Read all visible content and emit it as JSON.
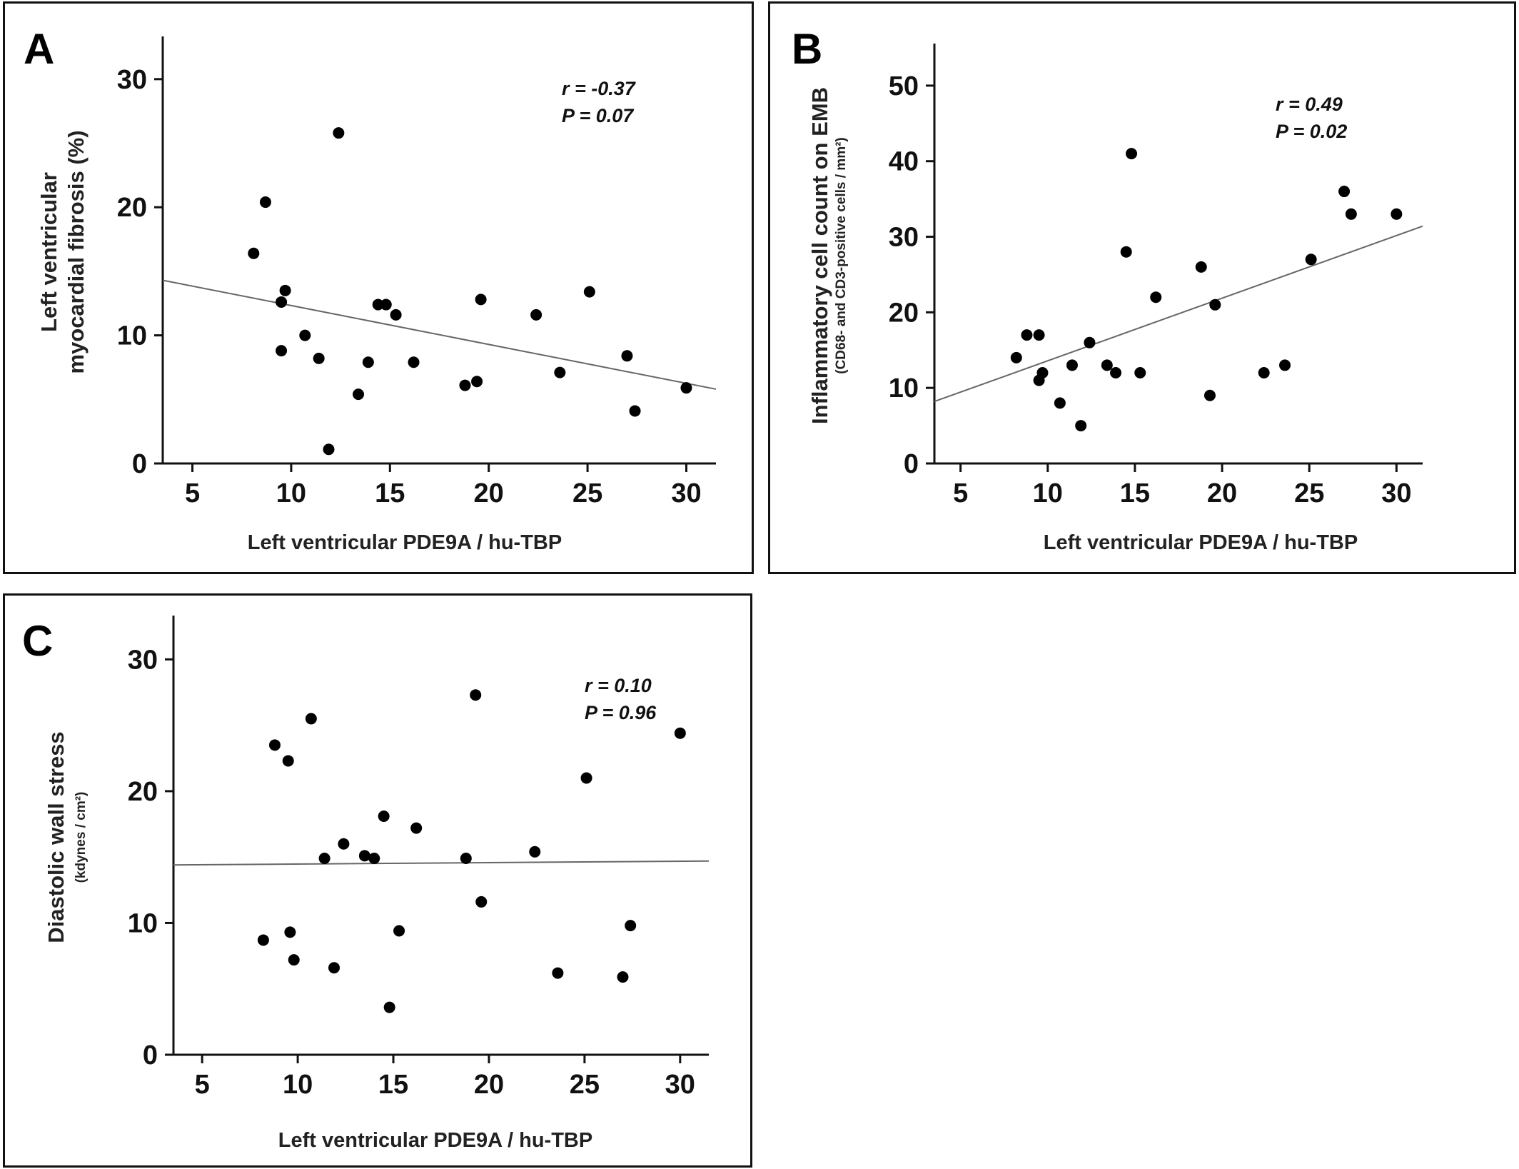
{
  "chart_data": [
    {
      "type": "scatter",
      "panel": "A",
      "xlabel": "Left ventricular PDE9A / hu-TBP",
      "ylabel_lines": [
        "Left ventricular",
        "myocardial fibrosis (%)"
      ],
      "ylabel_sub": "",
      "xlim": [
        3.5,
        31.5
      ],
      "ylim": [
        0,
        33
      ],
      "xticks": [
        5,
        10,
        15,
        20,
        25,
        30
      ],
      "yticks": [
        0,
        10,
        20,
        30
      ],
      "annotation": [
        "r = -0.37",
        "P = 0.07"
      ],
      "fit_line": {
        "from": [
          3.5,
          14.3
        ],
        "to": [
          31.5,
          5.8
        ]
      },
      "color": "#000000",
      "points": [
        [
          8.1,
          16.4
        ],
        [
          8.7,
          20.4
        ],
        [
          9.5,
          12.6
        ],
        [
          9.5,
          8.8
        ],
        [
          9.7,
          13.5
        ],
        [
          10.7,
          10.0
        ],
        [
          11.4,
          8.2
        ],
        [
          11.9,
          1.1
        ],
        [
          12.4,
          25.8
        ],
        [
          13.4,
          5.4
        ],
        [
          13.9,
          7.9
        ],
        [
          14.4,
          12.4
        ],
        [
          14.8,
          12.4
        ],
        [
          15.3,
          11.6
        ],
        [
          16.2,
          7.9
        ],
        [
          18.8,
          6.1
        ],
        [
          19.4,
          6.4
        ],
        [
          19.6,
          12.8
        ],
        [
          22.4,
          11.6
        ],
        [
          23.6,
          7.1
        ],
        [
          25.1,
          13.4
        ],
        [
          27.0,
          8.4
        ],
        [
          27.4,
          4.1
        ],
        [
          30.0,
          5.9
        ]
      ]
    },
    {
      "type": "scatter",
      "panel": "B",
      "xlabel": "Left ventricular PDE9A / hu-TBP",
      "ylabel_lines": [
        "Inflammatory cell count on EMB"
      ],
      "ylabel_sub": "(CD68- and CD3-positive cells / mm²)",
      "xlim": [
        3.5,
        31.5
      ],
      "ylim": [
        0,
        55
      ],
      "xticks": [
        5,
        10,
        15,
        20,
        25,
        30
      ],
      "yticks": [
        0,
        10,
        20,
        30,
        40,
        50
      ],
      "annotation": [
        "r = 0.49",
        "P = 0.02"
      ],
      "fit_line": {
        "from": [
          3.5,
          8.2
        ],
        "to": [
          31.5,
          31.4
        ]
      },
      "color": "#000000",
      "points": [
        [
          8.2,
          14
        ],
        [
          8.8,
          17
        ],
        [
          9.5,
          17
        ],
        [
          9.5,
          11
        ],
        [
          9.7,
          12
        ],
        [
          10.7,
          8
        ],
        [
          11.4,
          13
        ],
        [
          11.9,
          5
        ],
        [
          12.4,
          16
        ],
        [
          13.4,
          13
        ],
        [
          13.9,
          12
        ],
        [
          14.5,
          28
        ],
        [
          14.8,
          41
        ],
        [
          15.3,
          12
        ],
        [
          16.2,
          22
        ],
        [
          18.8,
          26
        ],
        [
          19.3,
          9
        ],
        [
          19.6,
          21
        ],
        [
          22.4,
          12
        ],
        [
          23.6,
          13
        ],
        [
          25.1,
          27
        ],
        [
          27.0,
          36
        ],
        [
          27.4,
          33
        ],
        [
          30.0,
          33
        ]
      ]
    },
    {
      "type": "scatter",
      "panel": "C",
      "xlabel": "Left ventricular PDE9A / hu-TBP",
      "ylabel_lines": [
        "Diastolic wall stress"
      ],
      "ylabel_sub": "(kdynes / cm²)",
      "xlim": [
        3.5,
        31.5
      ],
      "ylim": [
        0,
        33
      ],
      "xticks": [
        5,
        10,
        15,
        20,
        25,
        30
      ],
      "yticks": [
        0,
        10,
        20,
        30
      ],
      "annotation": [
        "r = 0.10",
        "P = 0.96"
      ],
      "fit_line": {
        "from": [
          3.5,
          14.4
        ],
        "to": [
          31.5,
          14.7
        ]
      },
      "color": "#000000",
      "points": [
        [
          8.2,
          8.7
        ],
        [
          8.8,
          23.5
        ],
        [
          9.5,
          22.3
        ],
        [
          9.6,
          9.3
        ],
        [
          9.8,
          7.2
        ],
        [
          10.7,
          25.5
        ],
        [
          11.4,
          14.9
        ],
        [
          11.9,
          6.6
        ],
        [
          12.4,
          16.0
        ],
        [
          13.5,
          15.1
        ],
        [
          14.0,
          14.9
        ],
        [
          14.5,
          18.1
        ],
        [
          14.8,
          3.6
        ],
        [
          15.3,
          9.4
        ],
        [
          16.2,
          17.2
        ],
        [
          18.8,
          14.9
        ],
        [
          19.3,
          27.3
        ],
        [
          19.6,
          11.6
        ],
        [
          22.4,
          15.4
        ],
        [
          23.6,
          6.2
        ],
        [
          25.1,
          21.0
        ],
        [
          27.0,
          5.9
        ],
        [
          27.4,
          9.8
        ],
        [
          30.0,
          24.4
        ]
      ]
    }
  ]
}
